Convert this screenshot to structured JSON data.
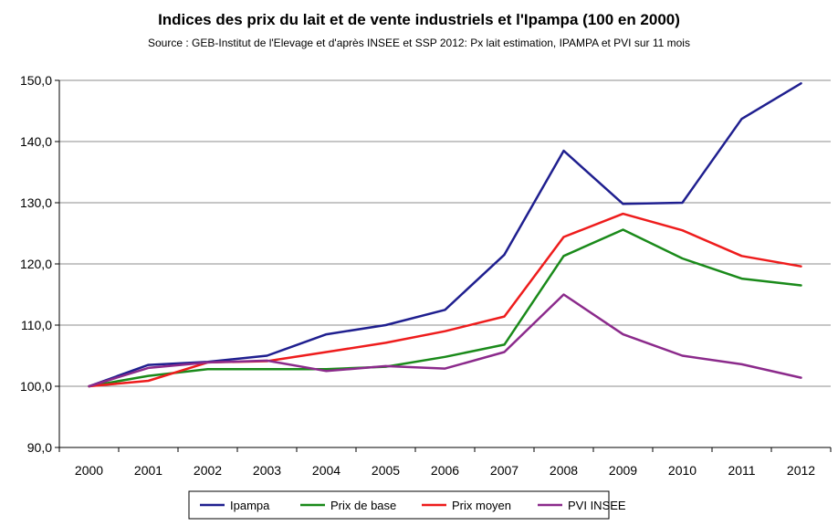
{
  "chart_data": {
    "type": "line",
    "title": "Indices des prix du lait et de vente industriels et l'Ipampa (100 en 2000)",
    "subtitle": "Source : GEB-Institut de l'Elevage et d'après INSEE et SSP  2012: Px lait estimation, IPAMPA et PVI sur 11 mois",
    "categories": [
      "2000",
      "2001",
      "2002",
      "2003",
      "2004",
      "2005",
      "2006",
      "2007",
      "2008",
      "2009",
      "2010",
      "2011",
      "2012"
    ],
    "ylim": [
      90,
      150
    ],
    "yticks": [
      "90,0",
      "100,0",
      "110,0",
      "120,0",
      "130,0",
      "140,0",
      "150,0"
    ],
    "grid": true,
    "legend_position": "bottom",
    "series": [
      {
        "name": "Ipampa",
        "color": "#1f1f8f",
        "values": [
          100.0,
          103.5,
          104.0,
          105.0,
          108.5,
          110.0,
          112.5,
          121.5,
          138.5,
          129.8,
          130.0,
          143.7,
          149.5
        ]
      },
      {
        "name": "Prix de base",
        "color": "#1a8a1a",
        "values": [
          100.0,
          101.7,
          102.8,
          102.8,
          102.8,
          103.2,
          104.8,
          106.8,
          121.3,
          125.6,
          120.9,
          117.6,
          116.5
        ]
      },
      {
        "name": "Prix moyen",
        "color": "#ee1c1c",
        "values": [
          100.0,
          100.9,
          103.9,
          104.1,
          105.6,
          107.1,
          109.0,
          111.4,
          124.4,
          128.2,
          125.5,
          121.3,
          119.6
        ]
      },
      {
        "name": "PVI INSEE",
        "color": "#8b2a8b",
        "values": [
          100.0,
          103.0,
          103.9,
          104.2,
          102.5,
          103.3,
          102.9,
          105.6,
          115.0,
          108.5,
          105.0,
          103.6,
          101.4
        ]
      }
    ]
  }
}
